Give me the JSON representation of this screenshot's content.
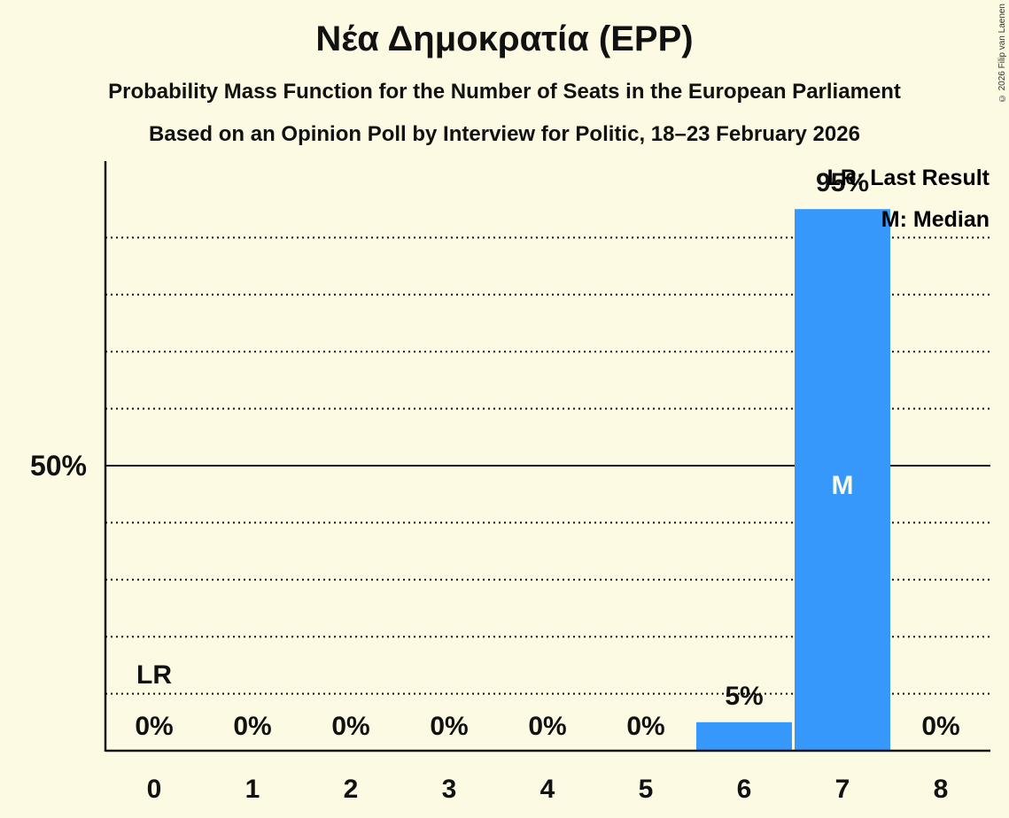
{
  "header": {
    "title": "Νέα Δημοκρατία (EPP)",
    "subtitle": "Probability Mass Function for the Number of Seats in the European Parliament",
    "source_line": "Based on an Opinion Poll by Interview for Politic, 18–23 February 2026",
    "copyright": "© 2026 Filip van Laenen"
  },
  "legend": {
    "lr": "LR: Last Result",
    "m": "M: Median"
  },
  "colors": {
    "background": "#fdfae3",
    "bar": "#3598fa",
    "axis": "#111111",
    "text": "#111111",
    "median_text": "#fdfae3"
  },
  "chart_data": {
    "type": "bar",
    "title": "Νέα Δημοκρατία (EPP)",
    "subtitle": "Probability Mass Function for the Number of Seats in the European Parliament",
    "xlabel": "",
    "ylabel": "",
    "categories": [
      "0",
      "1",
      "2",
      "3",
      "4",
      "5",
      "6",
      "7",
      "8"
    ],
    "values": [
      0,
      0,
      0,
      0,
      0,
      0,
      5,
      95,
      0
    ],
    "value_labels": [
      "0%",
      "0%",
      "0%",
      "0%",
      "0%",
      "0%",
      "5%",
      "95%",
      "0%"
    ],
    "ylim": [
      0,
      100
    ],
    "y_ticks_labeled": [
      {
        "value": 50,
        "label": "50%"
      }
    ],
    "gridlines": [
      10,
      20,
      30,
      40,
      60,
      70,
      80,
      90
    ],
    "solid_gridline": 50,
    "annotations": [
      {
        "category": "0",
        "text": "LR",
        "meaning": "Last Result"
      },
      {
        "category": "7",
        "text": "M",
        "meaning": "Median"
      }
    ],
    "legend": [
      "LR: Last Result",
      "M: Median"
    ],
    "legend_position": "top-right"
  }
}
